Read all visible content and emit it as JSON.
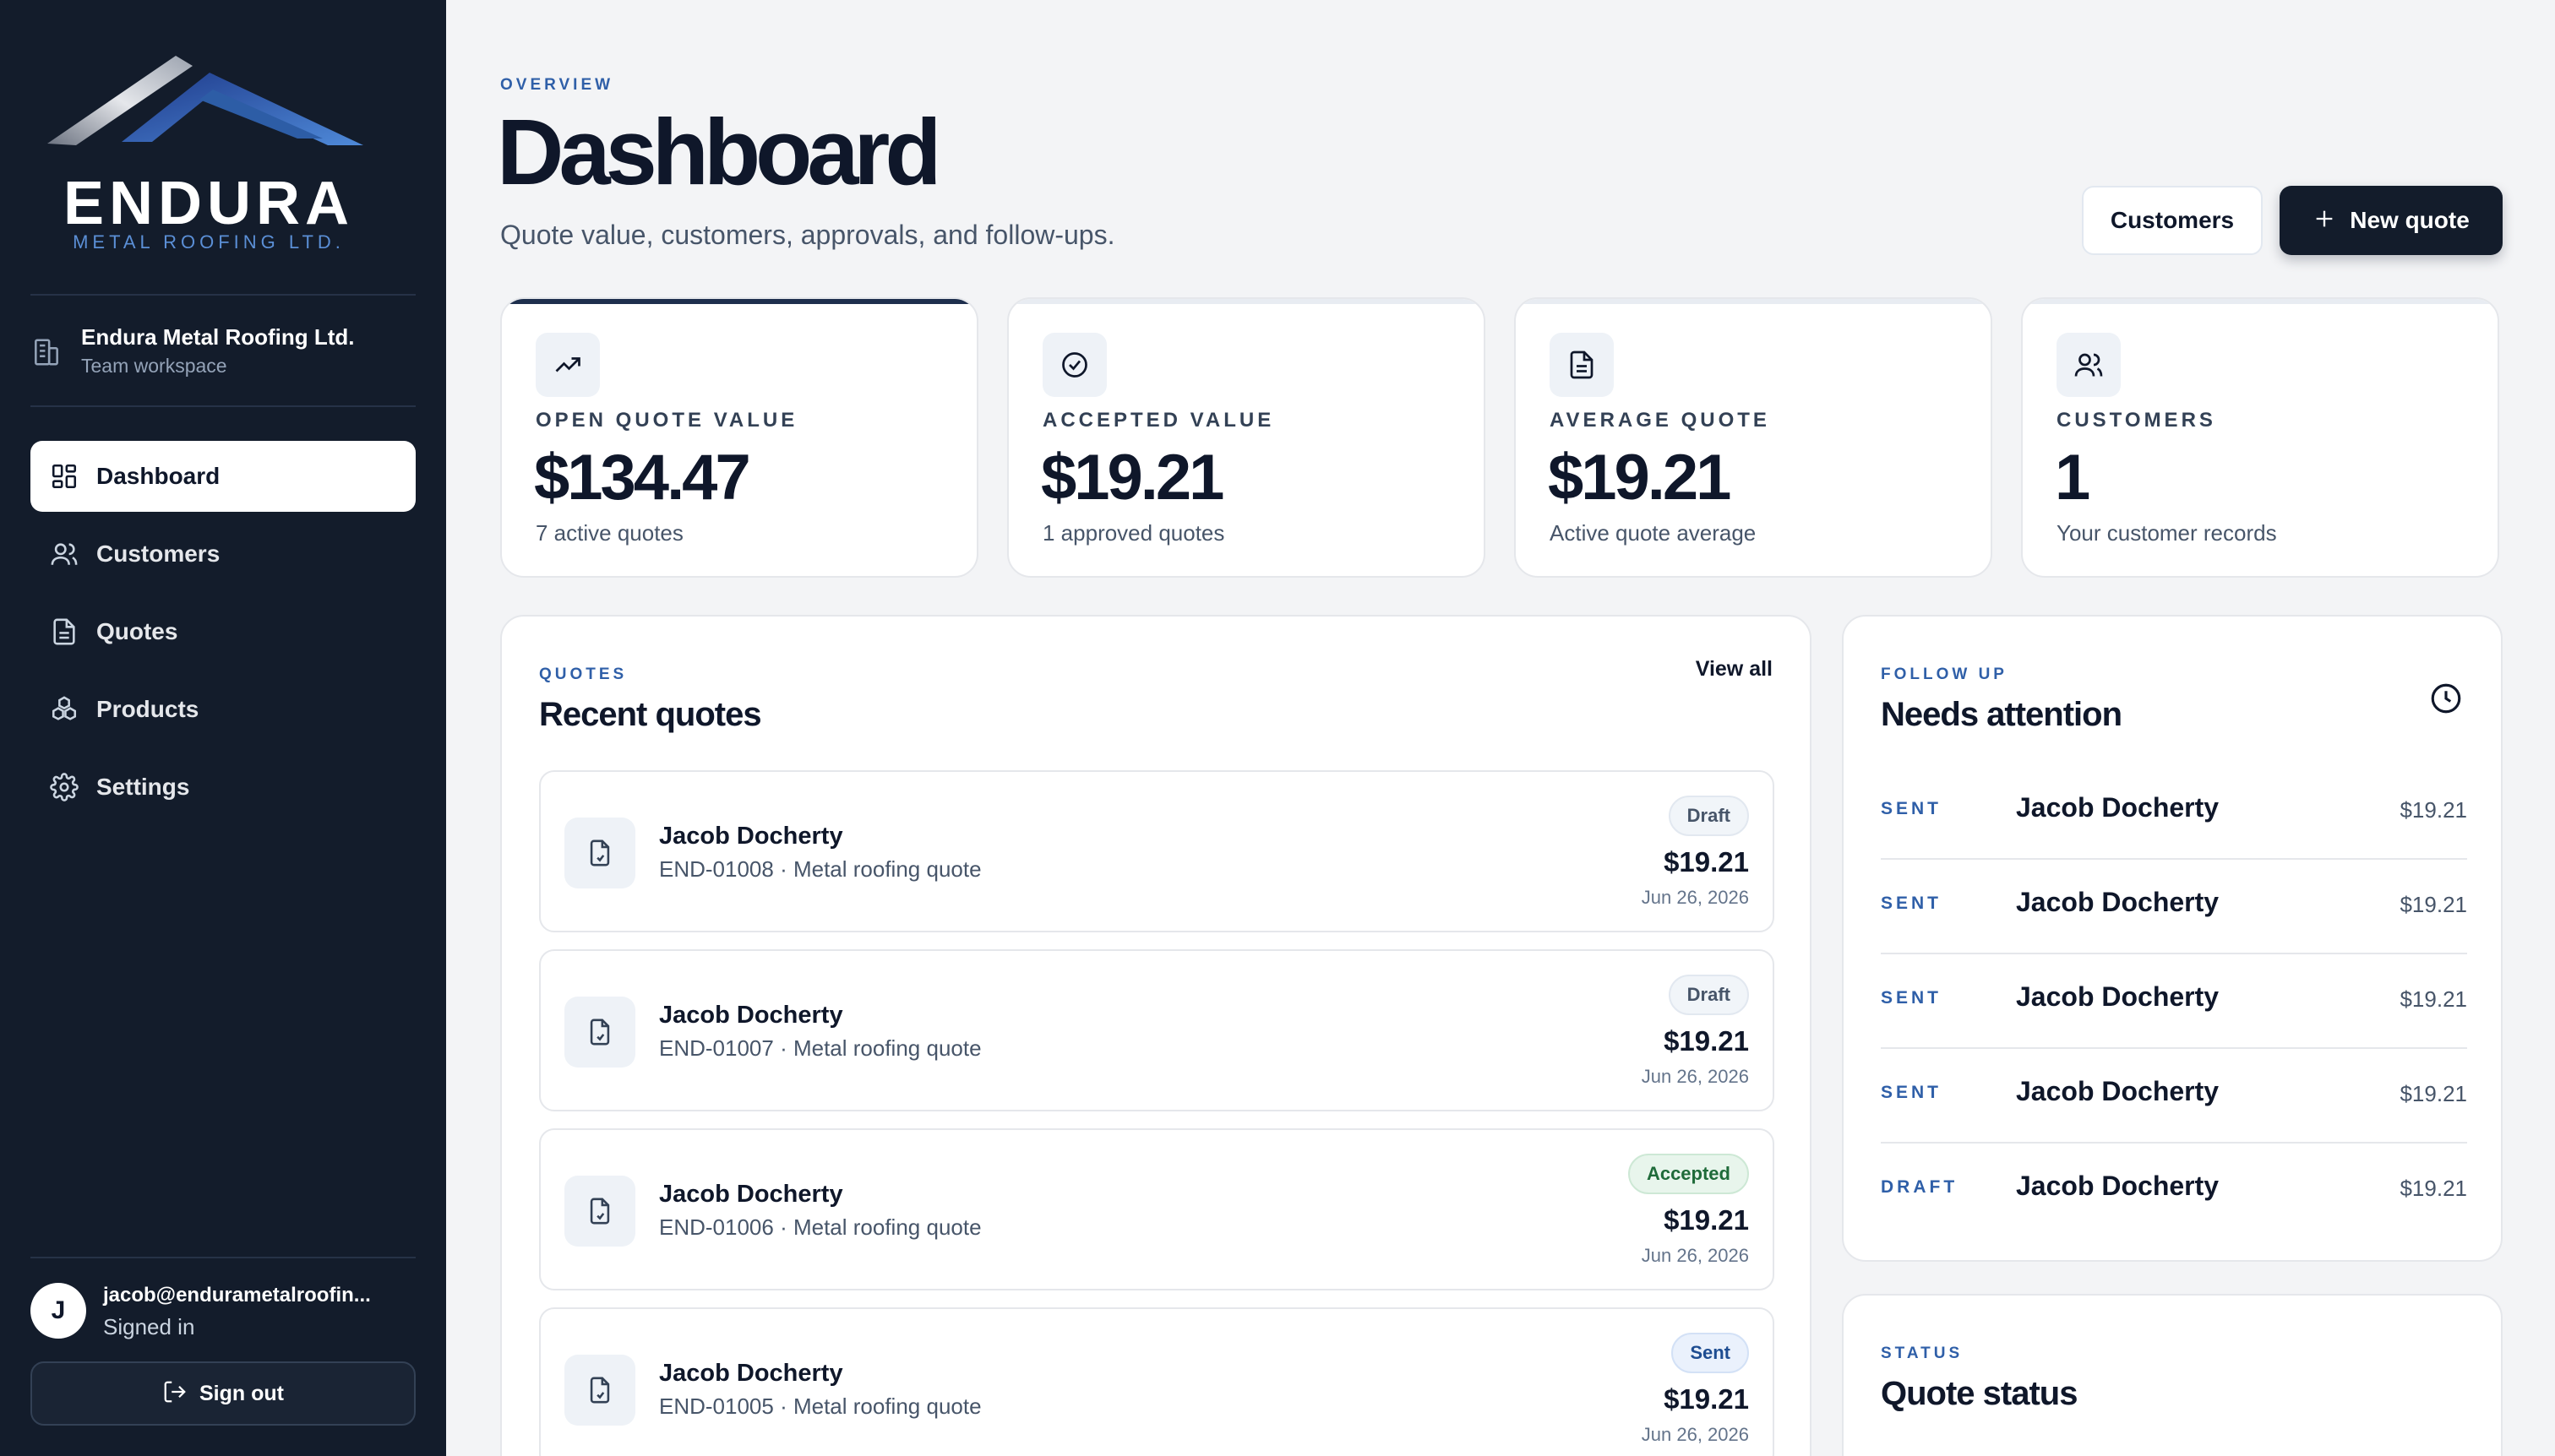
{
  "brand": {
    "name": "ENDURA",
    "tagline": "METAL ROOFING LTD."
  },
  "workspace": {
    "name": "Endura Metal Roofing Ltd.",
    "subtitle": "Team workspace",
    "icon": "building-icon"
  },
  "sidebar": {
    "items": [
      {
        "label": "Dashboard",
        "icon": "grid-icon",
        "active": true
      },
      {
        "label": "Customers",
        "icon": "users-icon",
        "active": false
      },
      {
        "label": "Quotes",
        "icon": "document-icon",
        "active": false
      },
      {
        "label": "Products",
        "icon": "cubes-icon",
        "active": false
      },
      {
        "label": "Settings",
        "icon": "gear-icon",
        "active": false
      }
    ]
  },
  "user": {
    "initial": "J",
    "email": "jacob@endurametalroofin...",
    "status": "Signed in",
    "signout_label": "Sign out"
  },
  "header": {
    "eyebrow": "OVERVIEW",
    "title": "Dashboard",
    "subtitle": "Quote value, customers, approvals, and follow-ups.",
    "customers_button": "Customers",
    "new_quote_button": "New quote"
  },
  "stats": [
    {
      "label": "OPEN QUOTE VALUE",
      "value": "$134.47",
      "note": "7 active quotes",
      "icon": "trending-up-icon"
    },
    {
      "label": "ACCEPTED VALUE",
      "value": "$19.21",
      "note": "1 approved quotes",
      "icon": "check-circle-icon"
    },
    {
      "label": "AVERAGE QUOTE",
      "value": "$19.21",
      "note": "Active quote average",
      "icon": "document-icon"
    },
    {
      "label": "CUSTOMERS",
      "value": "1",
      "note": "Your customer records",
      "icon": "users-icon"
    }
  ],
  "recent_quotes": {
    "eyebrow": "QUOTES",
    "title": "Recent quotes",
    "view_all": "View all",
    "items": [
      {
        "customer": "Jacob Docherty",
        "meta": "END-01008 · Metal roofing quote",
        "status": "Draft",
        "amount": "$19.21",
        "date": "Jun 26, 2026"
      },
      {
        "customer": "Jacob Docherty",
        "meta": "END-01007 · Metal roofing quote",
        "status": "Draft",
        "amount": "$19.21",
        "date": "Jun 26, 2026"
      },
      {
        "customer": "Jacob Docherty",
        "meta": "END-01006 · Metal roofing quote",
        "status": "Accepted",
        "amount": "$19.21",
        "date": "Jun 26, 2026"
      },
      {
        "customer": "Jacob Docherty",
        "meta": "END-01005 · Metal roofing quote",
        "status": "Sent",
        "amount": "$19.21",
        "date": "Jun 26, 2026"
      }
    ]
  },
  "follow_up": {
    "eyebrow": "FOLLOW UP",
    "title": "Needs attention",
    "icon": "clock-icon",
    "items": [
      {
        "status": "SENT",
        "customer": "Jacob Docherty",
        "amount": "$19.21"
      },
      {
        "status": "SENT",
        "customer": "Jacob Docherty",
        "amount": "$19.21"
      },
      {
        "status": "SENT",
        "customer": "Jacob Docherty",
        "amount": "$19.21"
      },
      {
        "status": "SENT",
        "customer": "Jacob Docherty",
        "amount": "$19.21"
      },
      {
        "status": "DRAFT",
        "customer": "Jacob Docherty",
        "amount": "$19.21"
      }
    ]
  },
  "quote_status": {
    "eyebrow": "STATUS",
    "title": "Quote status"
  },
  "colors": {
    "sidebar_bg": "#131c2b",
    "page_bg": "#f3f4f6",
    "accent_blue": "#2f5fa8",
    "primary_dark": "#131c2b"
  }
}
